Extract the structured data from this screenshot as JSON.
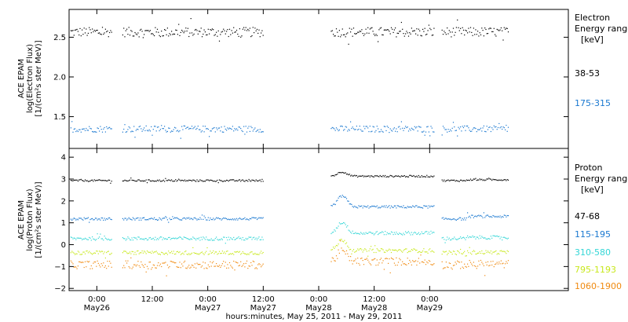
{
  "chart_data": [
    {
      "type": "scatter",
      "panel": "electron",
      "ylabel_lines": [
        "ACE EPAM",
        "log(Electron Flux)",
        "[1/(cm²s ster MeV)]"
      ],
      "ylim": [
        1.1,
        2.85
      ],
      "yticks": [
        1.5,
        2.0,
        2.5
      ],
      "ytick_labels": [
        "1.5",
        "2.0",
        "2.5"
      ],
      "legend": {
        "title_lines": [
          "Electron",
          "Energy ranges",
          "[keV]"
        ],
        "placement": "right"
      },
      "series": [
        {
          "name": "38-53",
          "color": "#000000",
          "level": 2.57,
          "noise": 0.06
        },
        {
          "name": "175-315",
          "color": "#1a78d0",
          "level": 1.35,
          "noise": 0.04
        }
      ],
      "events": []
    },
    {
      "type": "scatter",
      "panel": "proton",
      "ylabel_lines": [
        "ACE EPAM",
        "log(Proton Flux)",
        "[1/(cm²s ster MeV)]"
      ],
      "ylim": [
        -2.1,
        4.4
      ],
      "yticks": [
        -2,
        -1,
        0,
        1,
        2,
        3,
        4
      ],
      "ytick_labels": [
        "−2",
        "−1",
        "0",
        "1",
        "2",
        "3",
        "4"
      ],
      "legend": {
        "title_lines": [
          "Proton",
          "Energy ranges",
          "[keV]"
        ],
        "placement": "right"
      },
      "series": [
        {
          "name": "47-68",
          "color": "#000000",
          "level": 2.95,
          "noise": 0.04,
          "post": 3.15
        },
        {
          "name": "115-195",
          "color": "#1a78d0",
          "level": 1.2,
          "noise": 0.06,
          "post": 1.75
        },
        {
          "name": "310-580",
          "color": "#33d6d6",
          "level": 0.3,
          "noise": 0.08,
          "post": 0.55
        },
        {
          "name": "795-1193",
          "color": "#c8e81c",
          "level": -0.35,
          "noise": 0.09,
          "post": -0.25
        },
        {
          "name": "1060-1900",
          "color": "#f08a10",
          "level": -0.9,
          "noise": 0.18,
          "post": -0.75
        }
      ]
    }
  ],
  "xaxis": {
    "xlim_hours": [
      -6,
      102
    ],
    "gaps_hours": [
      [
        3.2,
        5.5
      ],
      [
        36.0,
        50.5
      ],
      [
        73.0,
        74.5
      ]
    ],
    "data_end_hours": 89,
    "ticks": [
      {
        "h": 0,
        "time": "0:00",
        "date": "May26"
      },
      {
        "h": 12,
        "time": "12:00",
        "date": ""
      },
      {
        "h": 24,
        "time": "0:00",
        "date": "May27"
      },
      {
        "h": 36,
        "time": "12:00",
        "date": "May27"
      },
      {
        "h": 48,
        "time": "0:00",
        "date": "May28"
      },
      {
        "h": 60,
        "time": "12:00",
        "date": "May28"
      },
      {
        "h": 72,
        "time": "0:00",
        "date": "May29"
      }
    ],
    "label": "hours:minutes, May 25, 2011 - May 29, 2011"
  },
  "legend_labels": {
    "electron": [
      "38-53",
      "175-315"
    ],
    "proton": [
      "47-68",
      "115-195",
      "310-580",
      "795-1193",
      "1060-1900"
    ]
  }
}
